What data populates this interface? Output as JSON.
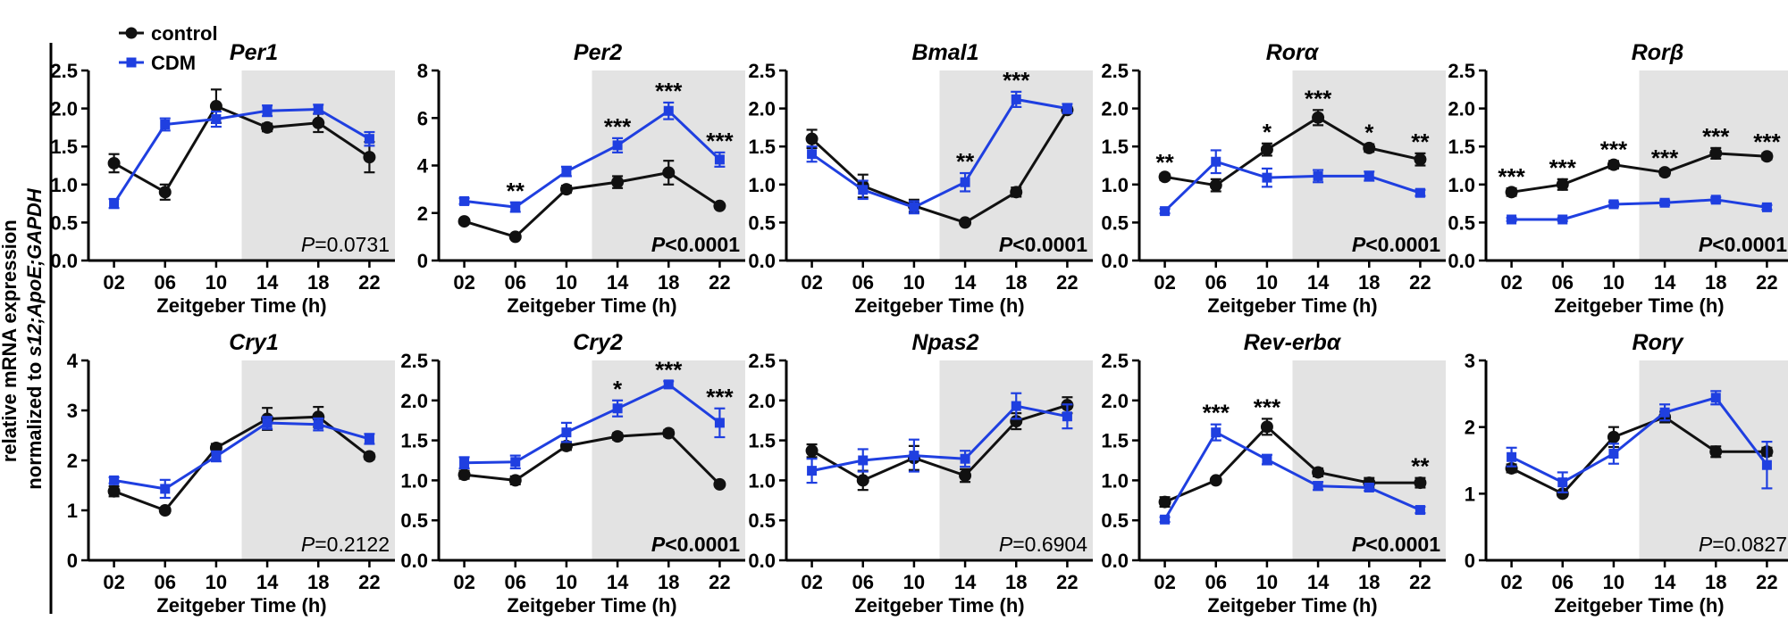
{
  "colors": {
    "control": "#111111",
    "cdm": "#1f3fe0",
    "dark_phase": "#e3e3e3"
  },
  "legend": {
    "control": "control",
    "cdm": "CDM"
  },
  "y_axis_label": {
    "line1": "relative mRNA expression",
    "line2_prefix": "normalized to ",
    "line2_italic": "s12;ApoE;GAPDH"
  },
  "chart_data": [
    {
      "type": "line",
      "gene": "Per1",
      "title": "Per1",
      "xlabel": "Zeitgeber Time (h)",
      "categories": [
        "02",
        "06",
        "10",
        "14",
        "18",
        "22"
      ],
      "ylim": [
        0,
        2.5
      ],
      "yticks": [
        "0.0",
        "0.5",
        "1.0",
        "1.5",
        "2.0",
        "2.5"
      ],
      "dark_from": "12",
      "series": [
        {
          "name": "control",
          "values": [
            1.28,
            0.9,
            2.03,
            1.75,
            1.81,
            1.36
          ],
          "errors": [
            0.12,
            0.1,
            0.22,
            0.05,
            0.12,
            0.2
          ]
        },
        {
          "name": "CDM",
          "values": [
            0.75,
            1.79,
            1.86,
            1.97,
            1.99,
            1.6
          ],
          "errors": [
            0.06,
            0.08,
            0.1,
            0.07,
            0.06,
            0.09
          ]
        }
      ],
      "significance": [
        "",
        "",
        "",
        "",
        "",
        ""
      ],
      "p_value": {
        "label": "P",
        "text": "=0.0731",
        "bold": false
      }
    },
    {
      "type": "line",
      "gene": "Per2",
      "title": "Per2",
      "xlabel": "Zeitgeber Time (h)",
      "categories": [
        "02",
        "06",
        "10",
        "14",
        "18",
        "22"
      ],
      "ylim": [
        0,
        8
      ],
      "yticks": [
        "0",
        "2",
        "4",
        "6",
        "8"
      ],
      "dark_from": "12",
      "series": [
        {
          "name": "control",
          "values": [
            1.65,
            1.0,
            3.0,
            3.3,
            3.7,
            2.3
          ],
          "errors": [
            0.1,
            0.1,
            0.15,
            0.25,
            0.5,
            0.1
          ]
        },
        {
          "name": "CDM",
          "values": [
            2.5,
            2.25,
            3.75,
            4.85,
            6.3,
            4.25
          ],
          "errors": [
            0.12,
            0.2,
            0.2,
            0.3,
            0.35,
            0.3
          ]
        }
      ],
      "significance": [
        "",
        "**",
        "",
        "***",
        "***",
        "***"
      ],
      "p_value": {
        "label": "P",
        "text": "<0.0001",
        "bold": true
      }
    },
    {
      "type": "line",
      "gene": "Bmal1",
      "title": "Bmal1",
      "xlabel": "Zeitgeber Time (h)",
      "categories": [
        "02",
        "06",
        "10",
        "14",
        "18",
        "22"
      ],
      "ylim": [
        0,
        2.5
      ],
      "yticks": [
        "0.0",
        "0.5",
        "1.0",
        "1.5",
        "2.0",
        "2.5"
      ],
      "dark_from": "12",
      "series": [
        {
          "name": "control",
          "values": [
            1.6,
            0.98,
            0.72,
            0.5,
            0.9,
            1.98
          ],
          "errors": [
            0.12,
            0.15,
            0.08,
            0.03,
            0.06,
            0.04
          ]
        },
        {
          "name": "CDM",
          "values": [
            1.4,
            0.93,
            0.7,
            1.03,
            2.12,
            2.0
          ],
          "errors": [
            0.1,
            0.12,
            0.08,
            0.12,
            0.1,
            0.06
          ]
        }
      ],
      "significance": [
        "",
        "",
        "",
        "**",
        "***",
        ""
      ],
      "p_value": {
        "label": "P",
        "text": "<0.0001",
        "bold": true
      }
    },
    {
      "type": "line",
      "gene": "Rora",
      "title": "Rorα",
      "xlabel": "Zeitgeber Time (h)",
      "categories": [
        "02",
        "06",
        "10",
        "14",
        "18",
        "22"
      ],
      "ylim": [
        0,
        2.5
      ],
      "yticks": [
        "0.0",
        "0.5",
        "1.0",
        "1.5",
        "2.0",
        "2.5"
      ],
      "dark_from": "12",
      "series": [
        {
          "name": "control",
          "values": [
            1.1,
            0.99,
            1.46,
            1.88,
            1.48,
            1.33
          ],
          "errors": [
            0.04,
            0.08,
            0.08,
            0.1,
            0.05,
            0.08
          ]
        },
        {
          "name": "CDM",
          "values": [
            0.65,
            1.3,
            1.09,
            1.11,
            1.11,
            0.89
          ],
          "errors": [
            0.03,
            0.15,
            0.12,
            0.08,
            0.06,
            0.04
          ]
        }
      ],
      "significance": [
        "**",
        "",
        "*",
        "***",
        "*",
        "**"
      ],
      "p_value": {
        "label": "P",
        "text": "<0.0001",
        "bold": true
      }
    },
    {
      "type": "line",
      "gene": "Rorb",
      "title": "Rorβ",
      "xlabel": "Zeitgeber Time (h)",
      "categories": [
        "02",
        "06",
        "10",
        "14",
        "18",
        "22"
      ],
      "ylim": [
        0,
        2.5
      ],
      "yticks": [
        "0.0",
        "0.5",
        "1.0",
        "1.5",
        "2.0",
        "2.5"
      ],
      "dark_from": "12",
      "series": [
        {
          "name": "control",
          "values": [
            0.9,
            1.0,
            1.26,
            1.16,
            1.41,
            1.37
          ],
          "errors": [
            0.05,
            0.07,
            0.05,
            0.04,
            0.07,
            0.04
          ]
        },
        {
          "name": "CDM",
          "values": [
            0.54,
            0.54,
            0.74,
            0.76,
            0.8,
            0.7
          ],
          "errors": [
            0.02,
            0.02,
            0.03,
            0.03,
            0.03,
            0.03
          ]
        }
      ],
      "significance": [
        "***",
        "***",
        "***",
        "***",
        "***",
        "***"
      ],
      "p_value": {
        "label": "P",
        "text": "<0.0001",
        "bold": true
      }
    },
    {
      "type": "line",
      "gene": "Cry1",
      "title": "Cry1",
      "xlabel": "Zeitgeber Time (h)",
      "categories": [
        "02",
        "06",
        "10",
        "14",
        "18",
        "22"
      ],
      "ylim": [
        0,
        4
      ],
      "yticks": [
        "0",
        "1",
        "2",
        "3",
        "4"
      ],
      "dark_from": "12",
      "series": [
        {
          "name": "control",
          "values": [
            1.38,
            1.0,
            2.25,
            2.83,
            2.87,
            2.08
          ],
          "errors": [
            0.1,
            0.05,
            0.08,
            0.22,
            0.2,
            0.06
          ]
        },
        {
          "name": "CDM",
          "values": [
            1.6,
            1.43,
            2.08,
            2.75,
            2.72,
            2.43
          ],
          "errors": [
            0.06,
            0.18,
            0.1,
            0.12,
            0.12,
            0.1
          ]
        }
      ],
      "significance": [
        "",
        "",
        "",
        "",
        "",
        ""
      ],
      "p_value": {
        "label": "P",
        "text": "=0.2122",
        "bold": false
      }
    },
    {
      "type": "line",
      "gene": "Cry2",
      "title": "Cry2",
      "xlabel": "Zeitgeber Time (h)",
      "categories": [
        "02",
        "06",
        "10",
        "14",
        "18",
        "22"
      ],
      "ylim": [
        0,
        2.5
      ],
      "yticks": [
        "0.0",
        "0.5",
        "1.0",
        "1.5",
        "2.0",
        "2.5"
      ],
      "dark_from": "12",
      "series": [
        {
          "name": "control",
          "values": [
            1.07,
            1.0,
            1.43,
            1.55,
            1.59,
            0.95
          ],
          "errors": [
            0.05,
            0.05,
            0.05,
            0.04,
            0.04,
            0.03
          ]
        },
        {
          "name": "CDM",
          "values": [
            1.22,
            1.23,
            1.6,
            1.9,
            2.2,
            1.72
          ],
          "errors": [
            0.07,
            0.08,
            0.12,
            0.1,
            0.04,
            0.18
          ]
        }
      ],
      "significance": [
        "",
        "",
        "",
        "*",
        "***",
        "***"
      ],
      "p_value": {
        "label": "P",
        "text": "<0.0001",
        "bold": true
      }
    },
    {
      "type": "line",
      "gene": "Npas2",
      "title": "Npas2",
      "xlabel": "Zeitgeber Time (h)",
      "categories": [
        "02",
        "06",
        "10",
        "14",
        "18",
        "22"
      ],
      "ylim": [
        0,
        2.5
      ],
      "yticks": [
        "0.0",
        "0.5",
        "1.0",
        "1.5",
        "2.0",
        "2.5"
      ],
      "dark_from": "12",
      "series": [
        {
          "name": "control",
          "values": [
            1.37,
            1.0,
            1.28,
            1.06,
            1.74,
            1.94
          ],
          "errors": [
            0.08,
            0.12,
            0.15,
            0.08,
            0.1,
            0.1
          ]
        },
        {
          "name": "CDM",
          "values": [
            1.12,
            1.25,
            1.31,
            1.27,
            1.93,
            1.8
          ],
          "errors": [
            0.15,
            0.14,
            0.2,
            0.1,
            0.16,
            0.15
          ]
        }
      ],
      "significance": [
        "",
        "",
        "",
        "",
        "",
        ""
      ],
      "p_value": {
        "label": "P",
        "text": "=0.6904",
        "bold": false
      }
    },
    {
      "type": "line",
      "gene": "Rev-erba",
      "title": "Rev-erbα",
      "xlabel": "Zeitgeber Time (h)",
      "categories": [
        "02",
        "06",
        "10",
        "14",
        "18",
        "22"
      ],
      "ylim": [
        0,
        2.5
      ],
      "yticks": [
        "0.0",
        "0.5",
        "1.0",
        "1.5",
        "2.0",
        "2.5"
      ],
      "dark_from": "12",
      "series": [
        {
          "name": "control",
          "values": [
            0.73,
            1.0,
            1.67,
            1.1,
            0.97,
            0.97
          ],
          "errors": [
            0.06,
            0.03,
            0.1,
            0.05,
            0.06,
            0.06
          ]
        },
        {
          "name": "CDM",
          "values": [
            0.51,
            1.6,
            1.26,
            0.93,
            0.91,
            0.63
          ],
          "errors": [
            0.03,
            0.1,
            0.06,
            0.05,
            0.04,
            0.04
          ]
        }
      ],
      "significance": [
        "",
        "***",
        "***",
        "",
        "",
        "**"
      ],
      "p_value": {
        "label": "P",
        "text": "<0.0001",
        "bold": true
      }
    },
    {
      "type": "line",
      "gene": "Rorg",
      "title": "Rorγ",
      "xlabel": "Zeitgeber Time (h)",
      "categories": [
        "02",
        "06",
        "10",
        "14",
        "18",
        "22"
      ],
      "ylim": [
        0,
        3
      ],
      "yticks": [
        "0",
        "1",
        "2",
        "3"
      ],
      "dark_from": "12",
      "series": [
        {
          "name": "control",
          "values": [
            1.38,
            1.0,
            1.85,
            2.15,
            1.63,
            1.63
          ],
          "errors": [
            0.06,
            0.04,
            0.15,
            0.08,
            0.08,
            0.06
          ]
        },
        {
          "name": "CDM",
          "values": [
            1.55,
            1.17,
            1.6,
            2.22,
            2.44,
            1.43
          ],
          "errors": [
            0.14,
            0.15,
            0.15,
            0.12,
            0.1,
            0.35
          ]
        }
      ],
      "significance": [
        "",
        "",
        "",
        "",
        "",
        ""
      ],
      "p_value": {
        "label": "P",
        "text": "=0.0827",
        "bold": false
      }
    }
  ]
}
